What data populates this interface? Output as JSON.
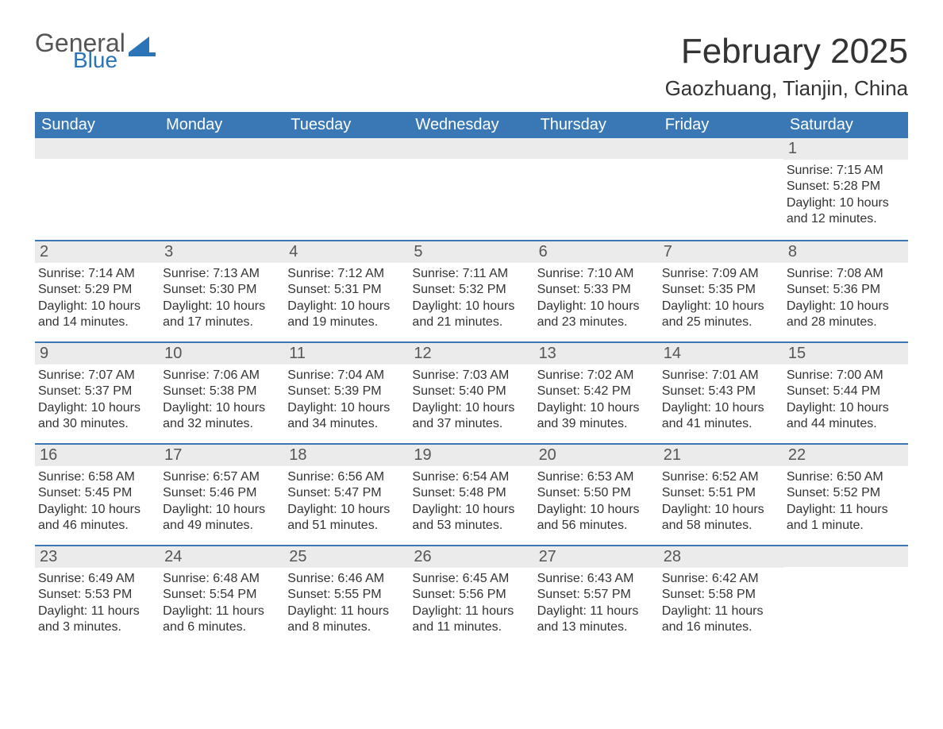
{
  "brand": {
    "word1": "General",
    "word2": "Blue",
    "logo_color": "#2b74b8"
  },
  "title": "February 2025",
  "location": "Gaozhuang, Tianjin, China",
  "colors": {
    "header_bg": "#3a78b5",
    "header_text": "#ffffff",
    "row_band": "#ebebeb",
    "rule": "#3a78b5",
    "text": "#333333"
  },
  "weekdays": [
    "Sunday",
    "Monday",
    "Tuesday",
    "Wednesday",
    "Thursday",
    "Friday",
    "Saturday"
  ],
  "weeks": [
    [
      {
        "day": "",
        "sunrise": "",
        "sunset": "",
        "daylight": ""
      },
      {
        "day": "",
        "sunrise": "",
        "sunset": "",
        "daylight": ""
      },
      {
        "day": "",
        "sunrise": "",
        "sunset": "",
        "daylight": ""
      },
      {
        "day": "",
        "sunrise": "",
        "sunset": "",
        "daylight": ""
      },
      {
        "day": "",
        "sunrise": "",
        "sunset": "",
        "daylight": ""
      },
      {
        "day": "",
        "sunrise": "",
        "sunset": "",
        "daylight": ""
      },
      {
        "day": "1",
        "sunrise": "Sunrise: 7:15 AM",
        "sunset": "Sunset: 5:28 PM",
        "daylight": "Daylight: 10 hours and 12 minutes."
      }
    ],
    [
      {
        "day": "2",
        "sunrise": "Sunrise: 7:14 AM",
        "sunset": "Sunset: 5:29 PM",
        "daylight": "Daylight: 10 hours and 14 minutes."
      },
      {
        "day": "3",
        "sunrise": "Sunrise: 7:13 AM",
        "sunset": "Sunset: 5:30 PM",
        "daylight": "Daylight: 10 hours and 17 minutes."
      },
      {
        "day": "4",
        "sunrise": "Sunrise: 7:12 AM",
        "sunset": "Sunset: 5:31 PM",
        "daylight": "Daylight: 10 hours and 19 minutes."
      },
      {
        "day": "5",
        "sunrise": "Sunrise: 7:11 AM",
        "sunset": "Sunset: 5:32 PM",
        "daylight": "Daylight: 10 hours and 21 minutes."
      },
      {
        "day": "6",
        "sunrise": "Sunrise: 7:10 AM",
        "sunset": "Sunset: 5:33 PM",
        "daylight": "Daylight: 10 hours and 23 minutes."
      },
      {
        "day": "7",
        "sunrise": "Sunrise: 7:09 AM",
        "sunset": "Sunset: 5:35 PM",
        "daylight": "Daylight: 10 hours and 25 minutes."
      },
      {
        "day": "8",
        "sunrise": "Sunrise: 7:08 AM",
        "sunset": "Sunset: 5:36 PM",
        "daylight": "Daylight: 10 hours and 28 minutes."
      }
    ],
    [
      {
        "day": "9",
        "sunrise": "Sunrise: 7:07 AM",
        "sunset": "Sunset: 5:37 PM",
        "daylight": "Daylight: 10 hours and 30 minutes."
      },
      {
        "day": "10",
        "sunrise": "Sunrise: 7:06 AM",
        "sunset": "Sunset: 5:38 PM",
        "daylight": "Daylight: 10 hours and 32 minutes."
      },
      {
        "day": "11",
        "sunrise": "Sunrise: 7:04 AM",
        "sunset": "Sunset: 5:39 PM",
        "daylight": "Daylight: 10 hours and 34 minutes."
      },
      {
        "day": "12",
        "sunrise": "Sunrise: 7:03 AM",
        "sunset": "Sunset: 5:40 PM",
        "daylight": "Daylight: 10 hours and 37 minutes."
      },
      {
        "day": "13",
        "sunrise": "Sunrise: 7:02 AM",
        "sunset": "Sunset: 5:42 PM",
        "daylight": "Daylight: 10 hours and 39 minutes."
      },
      {
        "day": "14",
        "sunrise": "Sunrise: 7:01 AM",
        "sunset": "Sunset: 5:43 PM",
        "daylight": "Daylight: 10 hours and 41 minutes."
      },
      {
        "day": "15",
        "sunrise": "Sunrise: 7:00 AM",
        "sunset": "Sunset: 5:44 PM",
        "daylight": "Daylight: 10 hours and 44 minutes."
      }
    ],
    [
      {
        "day": "16",
        "sunrise": "Sunrise: 6:58 AM",
        "sunset": "Sunset: 5:45 PM",
        "daylight": "Daylight: 10 hours and 46 minutes."
      },
      {
        "day": "17",
        "sunrise": "Sunrise: 6:57 AM",
        "sunset": "Sunset: 5:46 PM",
        "daylight": "Daylight: 10 hours and 49 minutes."
      },
      {
        "day": "18",
        "sunrise": "Sunrise: 6:56 AM",
        "sunset": "Sunset: 5:47 PM",
        "daylight": "Daylight: 10 hours and 51 minutes."
      },
      {
        "day": "19",
        "sunrise": "Sunrise: 6:54 AM",
        "sunset": "Sunset: 5:48 PM",
        "daylight": "Daylight: 10 hours and 53 minutes."
      },
      {
        "day": "20",
        "sunrise": "Sunrise: 6:53 AM",
        "sunset": "Sunset: 5:50 PM",
        "daylight": "Daylight: 10 hours and 56 minutes."
      },
      {
        "day": "21",
        "sunrise": "Sunrise: 6:52 AM",
        "sunset": "Sunset: 5:51 PM",
        "daylight": "Daylight: 10 hours and 58 minutes."
      },
      {
        "day": "22",
        "sunrise": "Sunrise: 6:50 AM",
        "sunset": "Sunset: 5:52 PM",
        "daylight": "Daylight: 11 hours and 1 minute."
      }
    ],
    [
      {
        "day": "23",
        "sunrise": "Sunrise: 6:49 AM",
        "sunset": "Sunset: 5:53 PM",
        "daylight": "Daylight: 11 hours and 3 minutes."
      },
      {
        "day": "24",
        "sunrise": "Sunrise: 6:48 AM",
        "sunset": "Sunset: 5:54 PM",
        "daylight": "Daylight: 11 hours and 6 minutes."
      },
      {
        "day": "25",
        "sunrise": "Sunrise: 6:46 AM",
        "sunset": "Sunset: 5:55 PM",
        "daylight": "Daylight: 11 hours and 8 minutes."
      },
      {
        "day": "26",
        "sunrise": "Sunrise: 6:45 AM",
        "sunset": "Sunset: 5:56 PM",
        "daylight": "Daylight: 11 hours and 11 minutes."
      },
      {
        "day": "27",
        "sunrise": "Sunrise: 6:43 AM",
        "sunset": "Sunset: 5:57 PM",
        "daylight": "Daylight: 11 hours and 13 minutes."
      },
      {
        "day": "28",
        "sunrise": "Sunrise: 6:42 AM",
        "sunset": "Sunset: 5:58 PM",
        "daylight": "Daylight: 11 hours and 16 minutes."
      },
      {
        "day": "",
        "sunrise": "",
        "sunset": "",
        "daylight": ""
      }
    ]
  ]
}
